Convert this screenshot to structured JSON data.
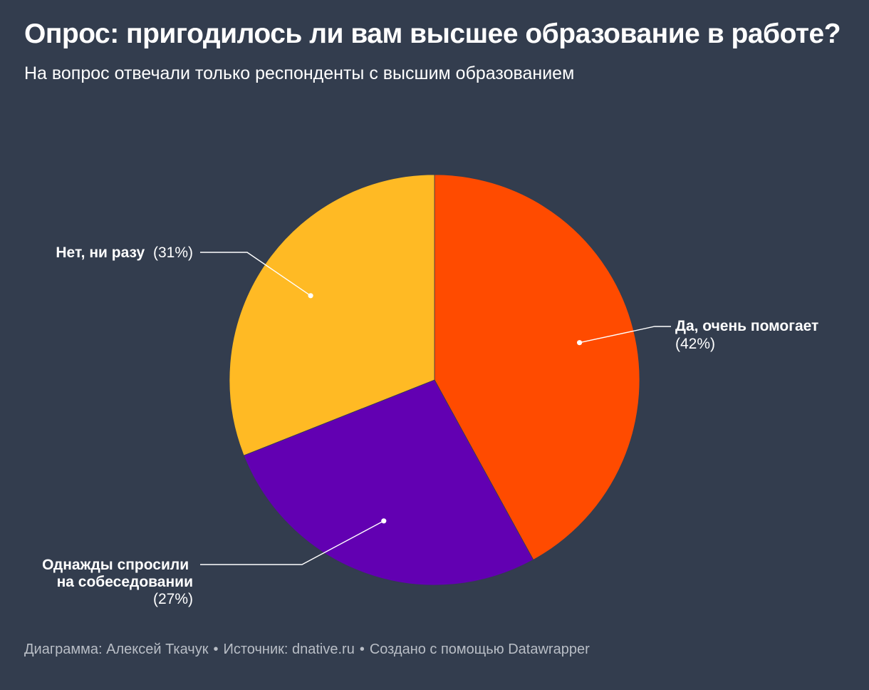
{
  "header": {
    "title": "Опрос: пригодилось ли вам высшее образование в работе?",
    "subtitle": "На вопрос отвечали только респонденты с высшим образованием"
  },
  "chart_data": {
    "type": "pie",
    "slices": [
      {
        "name": "Да, очень помогает",
        "value": 42,
        "label": "(42%)",
        "color": "#ff4b00"
      },
      {
        "name": "Однажды спросили на собеседовании",
        "value": 27,
        "label": "(27%)",
        "color": "#6200b2"
      },
      {
        "name": "Нет, ни разу",
        "value": 31,
        "label": "(31%)",
        "color": "#ffba24"
      }
    ]
  },
  "footer": {
    "credit": "Диаграмма: Алексей Ткачук",
    "source": "Источник: dnative.ru",
    "made_with": "Создано с помощью Datawrapper",
    "separator": "•"
  }
}
